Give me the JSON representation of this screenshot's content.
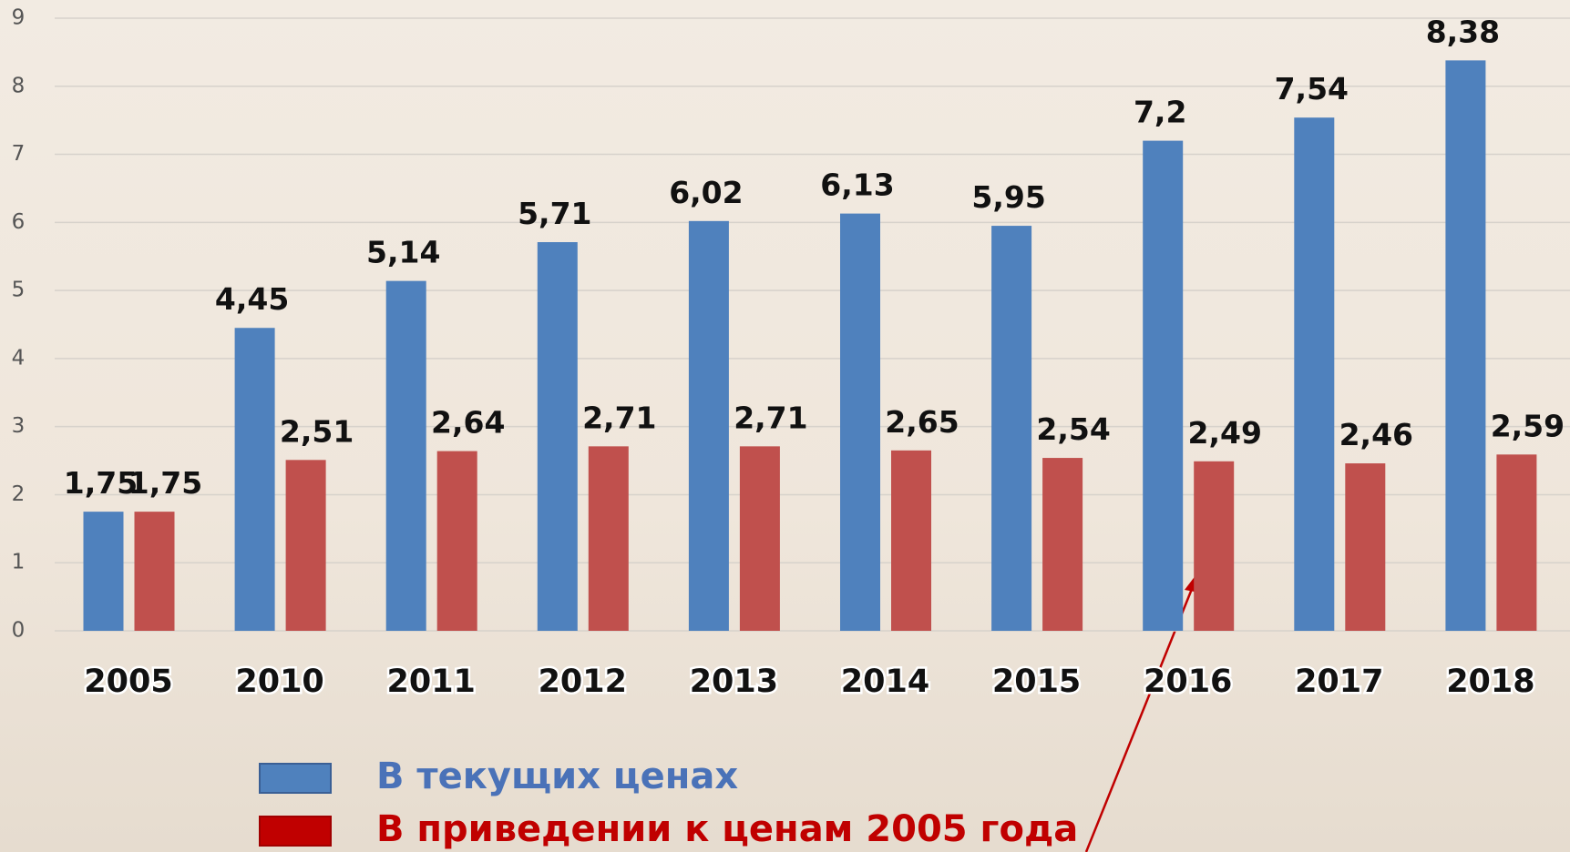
{
  "chart_data": {
    "type": "bar",
    "categories": [
      "2005",
      "2010",
      "2011",
      "2012",
      "2013",
      "2014",
      "2015",
      "2016",
      "2017",
      "2018"
    ],
    "series": [
      {
        "name": "В текущих ценах",
        "color": "#4f81bd",
        "values": [
          1.75,
          4.45,
          5.14,
          5.71,
          6.02,
          6.13,
          5.95,
          7.2,
          7.54,
          8.38
        ],
        "value_labels": [
          "1,75",
          "4,45",
          "5,14",
          "5,71",
          "6,02",
          "6,13",
          "5,95",
          "7,2",
          "7,54",
          "8,38"
        ]
      },
      {
        "name": "В приведении к ценам 2005 года",
        "color": "#c0504d",
        "values": [
          1.75,
          2.51,
          2.64,
          2.71,
          2.71,
          2.65,
          2.54,
          2.49,
          2.46,
          2.59
        ],
        "value_labels": [
          "1,75",
          "2,51",
          "2,64",
          "2,71",
          "2,71",
          "2,65",
          "2,54",
          "2,49",
          "2,46",
          "2,59"
        ]
      }
    ],
    "ylim": [
      0,
      9
    ],
    "yticks": [
      0,
      1,
      2,
      3,
      4,
      5,
      6,
      7,
      8,
      9
    ],
    "grid": true,
    "legend": "bottom"
  }
}
